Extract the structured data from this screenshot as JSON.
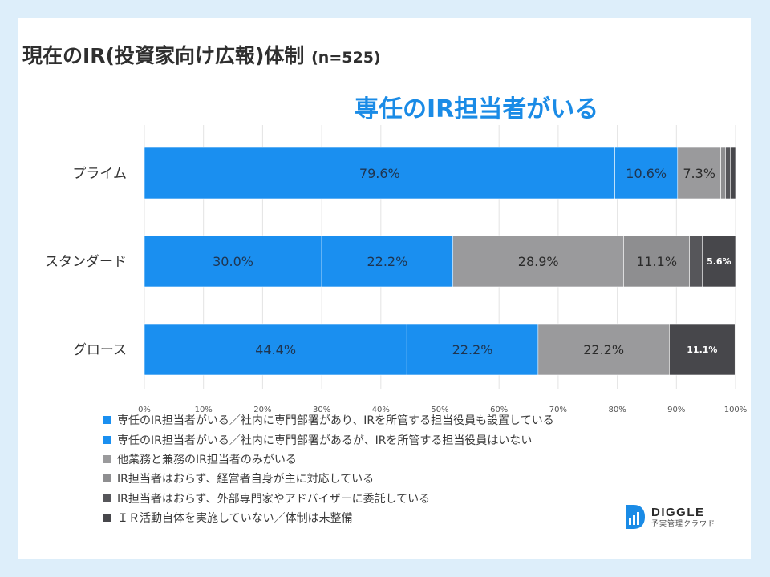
{
  "title": "現在のIR(投資家向け広報)体制",
  "sample_size": "(n=525)",
  "highlight_label": "専任のIR担当者がいる",
  "colors": {
    "accent": "#1a8be6",
    "series": [
      "#1a8ff0",
      "#1a8ff0",
      "#9a9a9c",
      "#8e8e90",
      "#56565a",
      "#47474b"
    ]
  },
  "chart_data": {
    "type": "bar",
    "orientation": "horizontal",
    "stacked": true,
    "categories": [
      "プライム",
      "スタンダード",
      "グロース"
    ],
    "xlim": [
      0,
      100
    ],
    "x_ticks": [
      "0%",
      "10%",
      "20%",
      "30%",
      "40%",
      "50%",
      "60%",
      "70%",
      "80%",
      "90%",
      "100%"
    ],
    "grid": true,
    "legend_position": "bottom",
    "series": [
      {
        "name": "専任のIR担当者がいる／社内に専門部署があり、IRを所管する担当役員も設置している",
        "values": [
          79.6,
          30.0,
          44.4
        ],
        "labels": [
          "79.6%",
          "30.0%",
          "44.4%"
        ]
      },
      {
        "name": "専任のIR担当者がいる／社内に専門部署があるが、IRを所管する担当役員はいない",
        "values": [
          10.6,
          22.2,
          22.2
        ],
        "labels": [
          "10.6%",
          "22.2%",
          "22.2%"
        ]
      },
      {
        "name": "他業務と兼務のIR担当者のみがいる",
        "values": [
          7.3,
          28.9,
          22.2
        ],
        "labels": [
          "7.3%",
          "28.9%",
          "22.2%"
        ]
      },
      {
        "name": "IR担当者はおらず、経営者自身が主に対応している",
        "values": [
          0.8,
          11.1,
          0.0
        ],
        "labels": [
          "",
          "11.1%",
          ""
        ]
      },
      {
        "name": "IR担当者はおらず、外部専門家やアドバイザーに委託している",
        "values": [
          0.8,
          2.2,
          0.0
        ],
        "labels": [
          "",
          "",
          ""
        ]
      },
      {
        "name": "ＩＲ活動自体を実施していない／体制は未整備",
        "values": [
          0.9,
          5.6,
          11.1
        ],
        "labels": [
          "",
          "5.6%",
          "11.1%"
        ]
      }
    ]
  },
  "logo": {
    "name": "DIGGLE",
    "tagline": "予実管理クラウド"
  }
}
